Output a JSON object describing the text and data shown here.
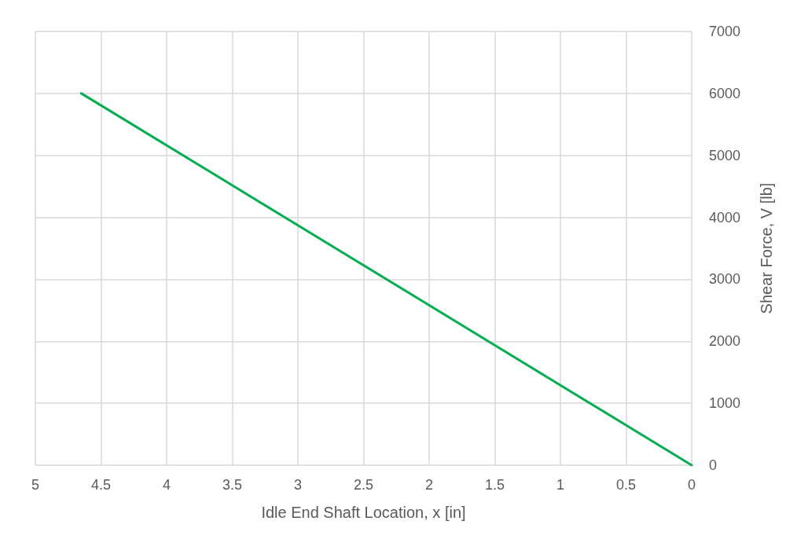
{
  "chart_data": {
    "type": "line",
    "xlabel": "Idle End Shaft Location, x [in]",
    "ylabel": "Shear Force, V [lb]",
    "series": [
      {
        "color": "#00b050",
        "x": [
          4.65,
          0
        ],
        "values": [
          6000,
          0
        ]
      }
    ],
    "xlim": [
      5,
      0
    ],
    "xticks": [
      5,
      4.5,
      4,
      3.5,
      3,
      2.5,
      2,
      1.5,
      1,
      0.5,
      0
    ],
    "ylim": [
      0,
      7000
    ],
    "yticks": [
      0,
      1000,
      2000,
      3000,
      4000,
      5000,
      6000,
      7000
    ],
    "grid": true,
    "marker": "none",
    "line_style": "solid"
  }
}
